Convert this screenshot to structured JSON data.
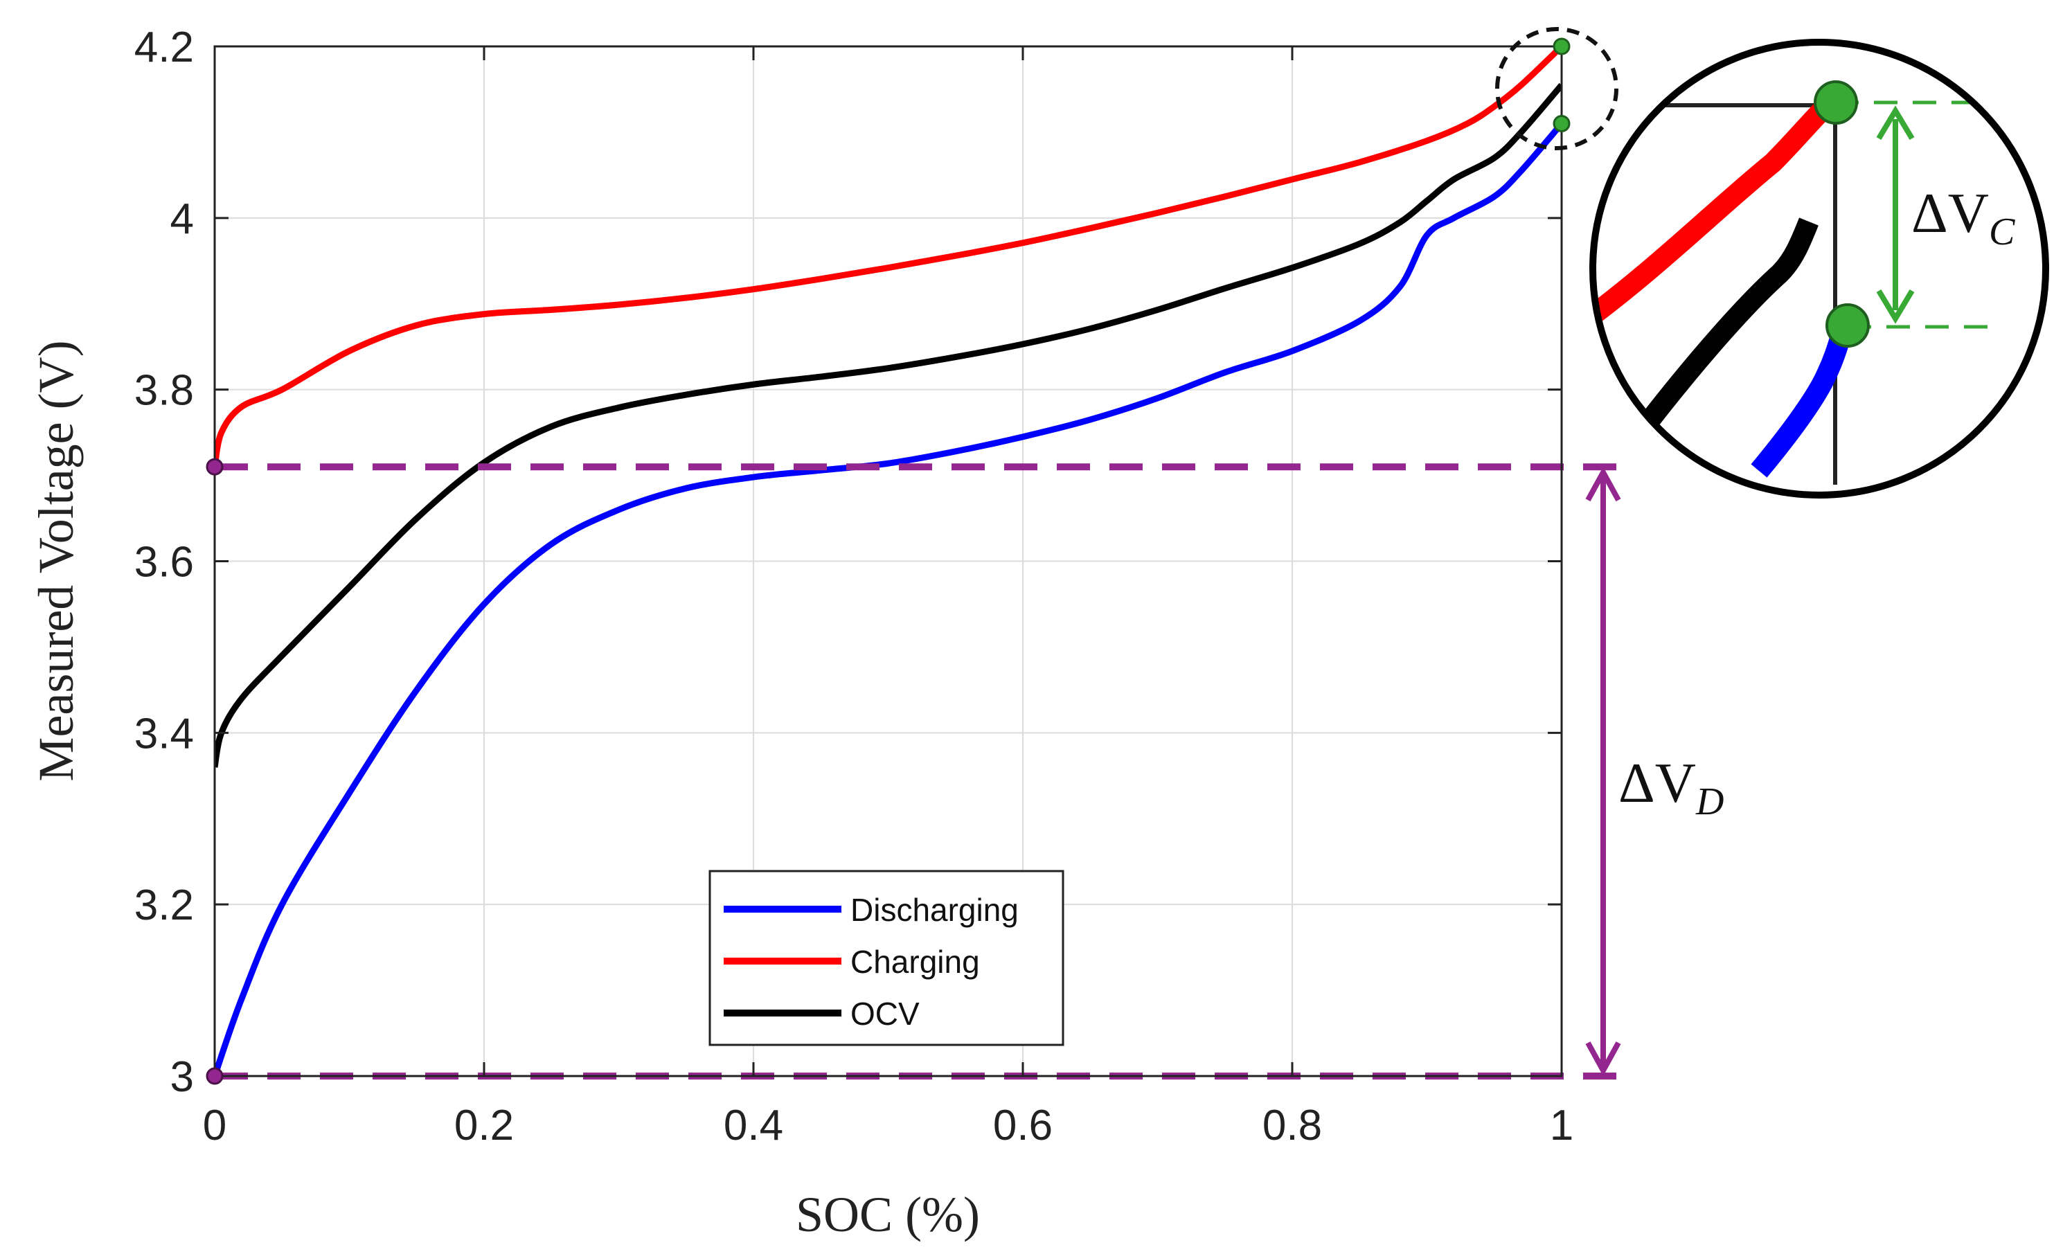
{
  "chart_data": {
    "type": "line",
    "xlabel": "SOC (%)",
    "ylabel": "Measured Voltage (V)",
    "xlim": [
      0,
      1
    ],
    "ylim": [
      3,
      4.2
    ],
    "grid": true,
    "x_ticks": [
      "0",
      "0.2",
      "0.4",
      "0.6",
      "0.8",
      "1"
    ],
    "y_ticks": [
      "3",
      "3.2",
      "3.4",
      "3.6",
      "3.8",
      "4",
      "4.2"
    ],
    "legend_position": "bottom-center",
    "series": [
      {
        "name": "Discharging",
        "color": "#0000ff",
        "x": [
          0,
          0.02,
          0.05,
          0.1,
          0.15,
          0.2,
          0.25,
          0.3,
          0.35,
          0.4,
          0.45,
          0.5,
          0.55,
          0.6,
          0.65,
          0.7,
          0.75,
          0.8,
          0.85,
          0.88,
          0.9,
          0.92,
          0.95,
          0.97,
          1.0
        ],
        "y": [
          3.0,
          3.09,
          3.2,
          3.33,
          3.45,
          3.55,
          3.62,
          3.66,
          3.685,
          3.698,
          3.706,
          3.714,
          3.728,
          3.745,
          3.765,
          3.79,
          3.82,
          3.845,
          3.88,
          3.92,
          3.98,
          4.0,
          4.025,
          4.055,
          4.11
        ]
      },
      {
        "name": "Charging",
        "color": "#ff0000",
        "x": [
          0,
          0.005,
          0.02,
          0.05,
          0.1,
          0.15,
          0.2,
          0.25,
          0.3,
          0.35,
          0.4,
          0.45,
          0.5,
          0.55,
          0.6,
          0.65,
          0.7,
          0.75,
          0.8,
          0.85,
          0.9,
          0.93,
          0.95,
          0.97,
          1.0
        ],
        "y": [
          3.71,
          3.75,
          3.78,
          3.8,
          3.845,
          3.875,
          3.888,
          3.893,
          3.899,
          3.907,
          3.917,
          3.929,
          3.942,
          3.956,
          3.971,
          3.988,
          4.006,
          4.025,
          4.045,
          4.065,
          4.09,
          4.11,
          4.13,
          4.155,
          4.2
        ]
      },
      {
        "name": "OCV",
        "color": "#000000",
        "x": [
          0,
          0.005,
          0.02,
          0.05,
          0.1,
          0.15,
          0.2,
          0.25,
          0.3,
          0.35,
          0.4,
          0.45,
          0.5,
          0.55,
          0.6,
          0.65,
          0.7,
          0.75,
          0.8,
          0.85,
          0.88,
          0.9,
          0.92,
          0.95,
          0.97,
          1.0
        ],
        "y": [
          3.36,
          3.4,
          3.44,
          3.49,
          3.57,
          3.65,
          3.715,
          3.757,
          3.779,
          3.794,
          3.806,
          3.815,
          3.825,
          3.838,
          3.853,
          3.871,
          3.893,
          3.918,
          3.942,
          3.97,
          3.995,
          4.02,
          4.045,
          4.07,
          4.1,
          4.155
        ]
      }
    ],
    "annotations": {
      "purple_lines_y": [
        3.71,
        3.0
      ],
      "delta_d_label": "ΔV",
      "delta_d_sub": "D",
      "delta_c_label": "ΔV",
      "delta_c_sub": "C",
      "green_markers": [
        [
          1.0,
          4.2
        ],
        [
          1.0,
          4.11
        ]
      ],
      "purple_markers": [
        [
          0,
          3.71
        ],
        [
          0,
          3.0
        ]
      ]
    }
  }
}
